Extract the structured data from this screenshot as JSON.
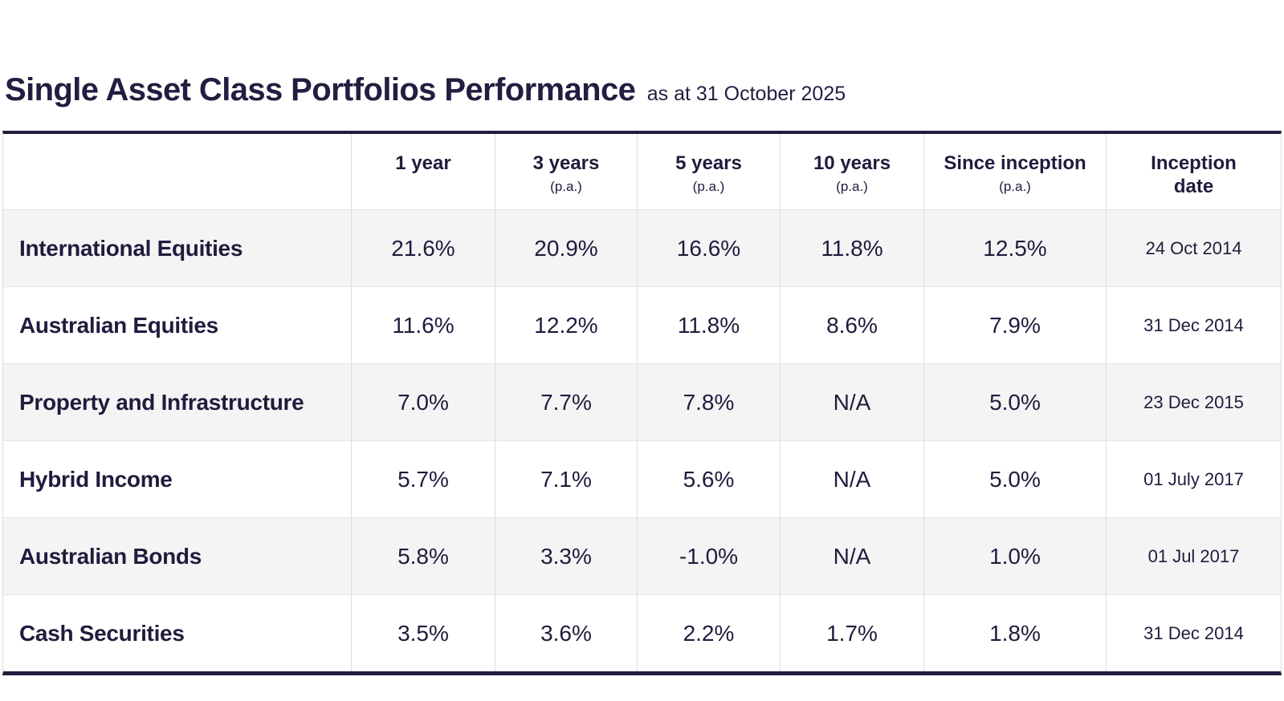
{
  "chart_data": {
    "type": "table",
    "title": "Single Asset Class Portfolios Performance",
    "subtitle": "as at 31 October 2025",
    "colors": {
      "text_navy": "#1f1c3d",
      "border_navy": "#1f1c3d",
      "divider_gray": "#dcdcdc",
      "alt_row_bg": "#f5f4f4"
    },
    "columns": [
      {
        "label": "",
        "sub": ""
      },
      {
        "label": "1 year",
        "sub": ""
      },
      {
        "label": "3 years",
        "sub": "(p.a.)"
      },
      {
        "label": "5 years",
        "sub": "(p.a.)"
      },
      {
        "label": "10 years",
        "sub": "(p.a.)"
      },
      {
        "label": "Since inception",
        "sub": "(p.a.)"
      },
      {
        "label": "Inception date",
        "sub": ""
      }
    ],
    "rows": [
      {
        "name": "International Equities",
        "values": [
          "21.6%",
          "20.9%",
          "16.6%",
          "11.8%",
          "12.5%"
        ],
        "inception_date": "24 Oct 2014"
      },
      {
        "name": "Australian Equities",
        "values": [
          "11.6%",
          "12.2%",
          "11.8%",
          "8.6%",
          "7.9%"
        ],
        "inception_date": "31 Dec 2014"
      },
      {
        "name": "Property and Infrastructure",
        "values": [
          "7.0%",
          "7.7%",
          "7.8%",
          "N/A",
          "5.0%"
        ],
        "inception_date": "23 Dec 2015"
      },
      {
        "name": "Hybrid Income",
        "values": [
          "5.7%",
          "7.1%",
          "5.6%",
          "N/A",
          "5.0%"
        ],
        "inception_date": "01 July 2017"
      },
      {
        "name": "Australian Bonds",
        "values": [
          "5.8%",
          "3.3%",
          "-1.0%",
          "N/A",
          "1.0%"
        ],
        "inception_date": "01 Jul 2017"
      },
      {
        "name": "Cash Securities",
        "values": [
          "3.5%",
          "3.6%",
          "2.2%",
          "1.7%",
          "1.8%"
        ],
        "inception_date": "31 Dec 2014"
      }
    ]
  }
}
